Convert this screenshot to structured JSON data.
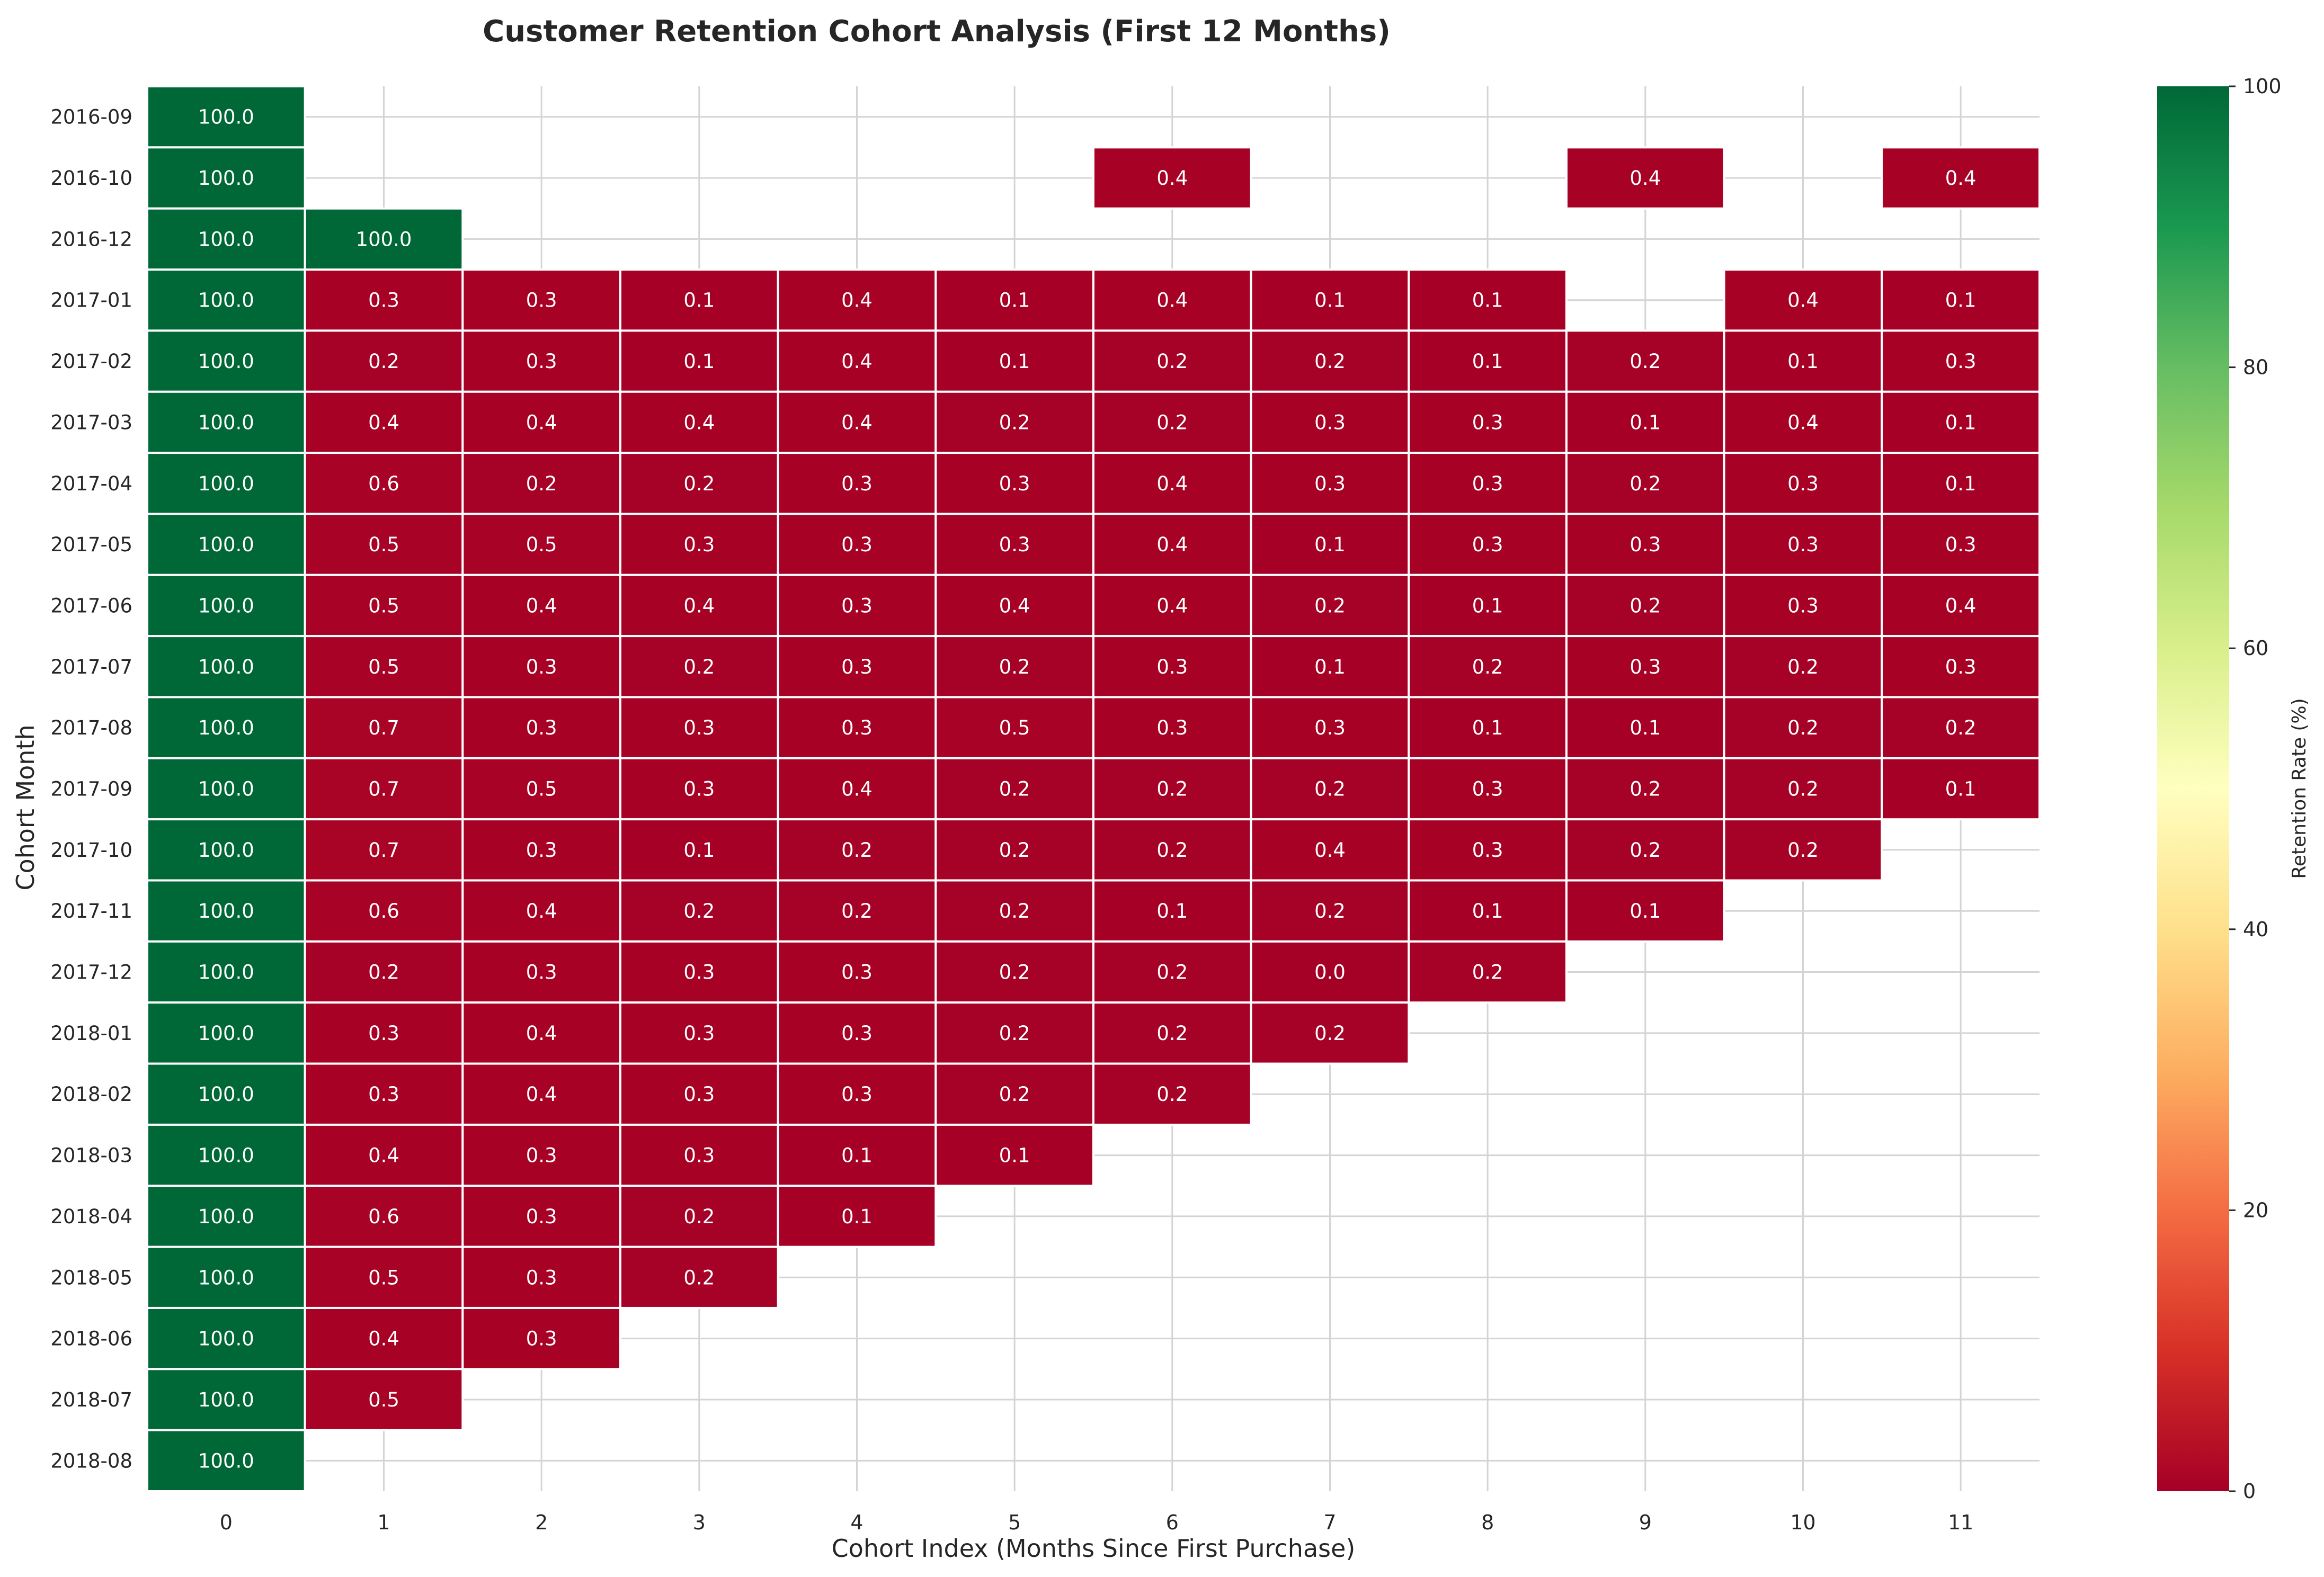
{
  "chart_data": {
    "type": "heatmap",
    "title": "Customer Retention Cohort Analysis (First 12 Months)",
    "xlabel": "Cohort Index (Months Since First Purchase)",
    "ylabel": "Cohort Month",
    "colorbar_label": "Retention Rate (%)",
    "colorbar_ticks": [
      "0",
      "20",
      "40",
      "60",
      "80",
      "100"
    ],
    "value_range": [
      0,
      100
    ],
    "colormap": "RdYlGn",
    "cmap_stops": [
      "#a50026",
      "#d73027",
      "#f46d43",
      "#fdae61",
      "#fee08b",
      "#ffffbf",
      "#d9ef8b",
      "#a6d96a",
      "#66bd63",
      "#1a9850",
      "#006837"
    ],
    "grid": true,
    "x_labels": [
      "0",
      "1",
      "2",
      "3",
      "4",
      "5",
      "6",
      "7",
      "8",
      "9",
      "10",
      "11"
    ],
    "y_labels": [
      "2016-09",
      "2016-10",
      "2016-12",
      "2017-01",
      "2017-02",
      "2017-03",
      "2017-04",
      "2017-05",
      "2017-06",
      "2017-07",
      "2017-08",
      "2017-09",
      "2017-10",
      "2017-11",
      "2017-12",
      "2018-01",
      "2018-02",
      "2018-03",
      "2018-04",
      "2018-05",
      "2018-06",
      "2018-07",
      "2018-08"
    ],
    "values": [
      [
        100.0,
        null,
        null,
        null,
        null,
        null,
        null,
        null,
        null,
        null,
        null,
        null
      ],
      [
        100.0,
        null,
        null,
        null,
        null,
        null,
        0.4,
        null,
        null,
        0.4,
        null,
        0.4
      ],
      [
        100.0,
        100.0,
        null,
        null,
        null,
        null,
        null,
        null,
        null,
        null,
        null,
        null
      ],
      [
        100.0,
        0.3,
        0.3,
        0.1,
        0.4,
        0.1,
        0.4,
        0.1,
        0.1,
        null,
        0.4,
        0.1
      ],
      [
        100.0,
        0.2,
        0.3,
        0.1,
        0.4,
        0.1,
        0.2,
        0.2,
        0.1,
        0.2,
        0.1,
        0.3
      ],
      [
        100.0,
        0.4,
        0.4,
        0.4,
        0.4,
        0.2,
        0.2,
        0.3,
        0.3,
        0.1,
        0.4,
        0.1
      ],
      [
        100.0,
        0.6,
        0.2,
        0.2,
        0.3,
        0.3,
        0.4,
        0.3,
        0.3,
        0.2,
        0.3,
        0.1
      ],
      [
        100.0,
        0.5,
        0.5,
        0.3,
        0.3,
        0.3,
        0.4,
        0.1,
        0.3,
        0.3,
        0.3,
        0.3
      ],
      [
        100.0,
        0.5,
        0.4,
        0.4,
        0.3,
        0.4,
        0.4,
        0.2,
        0.1,
        0.2,
        0.3,
        0.4
      ],
      [
        100.0,
        0.5,
        0.3,
        0.2,
        0.3,
        0.2,
        0.3,
        0.1,
        0.2,
        0.3,
        0.2,
        0.3
      ],
      [
        100.0,
        0.7,
        0.3,
        0.3,
        0.3,
        0.5,
        0.3,
        0.3,
        0.1,
        0.1,
        0.2,
        0.2
      ],
      [
        100.0,
        0.7,
        0.5,
        0.3,
        0.4,
        0.2,
        0.2,
        0.2,
        0.3,
        0.2,
        0.2,
        0.1
      ],
      [
        100.0,
        0.7,
        0.3,
        0.1,
        0.2,
        0.2,
        0.2,
        0.4,
        0.3,
        0.2,
        0.2,
        null
      ],
      [
        100.0,
        0.6,
        0.4,
        0.2,
        0.2,
        0.2,
        0.1,
        0.2,
        0.1,
        0.1,
        null,
        null
      ],
      [
        100.0,
        0.2,
        0.3,
        0.3,
        0.3,
        0.2,
        0.2,
        0.0,
        0.2,
        null,
        null,
        null
      ],
      [
        100.0,
        0.3,
        0.4,
        0.3,
        0.3,
        0.2,
        0.2,
        0.2,
        null,
        null,
        null,
        null
      ],
      [
        100.0,
        0.3,
        0.4,
        0.3,
        0.3,
        0.2,
        0.2,
        null,
        null,
        null,
        null,
        null
      ],
      [
        100.0,
        0.4,
        0.3,
        0.3,
        0.1,
        0.1,
        null,
        null,
        null,
        null,
        null,
        null
      ],
      [
        100.0,
        0.6,
        0.3,
        0.2,
        0.1,
        null,
        null,
        null,
        null,
        null,
        null,
        null
      ],
      [
        100.0,
        0.5,
        0.3,
        0.2,
        null,
        null,
        null,
        null,
        null,
        null,
        null,
        null
      ],
      [
        100.0,
        0.4,
        0.3,
        null,
        null,
        null,
        null,
        null,
        null,
        null,
        null,
        null
      ],
      [
        100.0,
        0.5,
        null,
        null,
        null,
        null,
        null,
        null,
        null,
        null,
        null,
        null
      ],
      [
        100.0,
        null,
        null,
        null,
        null,
        null,
        null,
        null,
        null,
        null,
        null,
        null
      ]
    ]
  }
}
